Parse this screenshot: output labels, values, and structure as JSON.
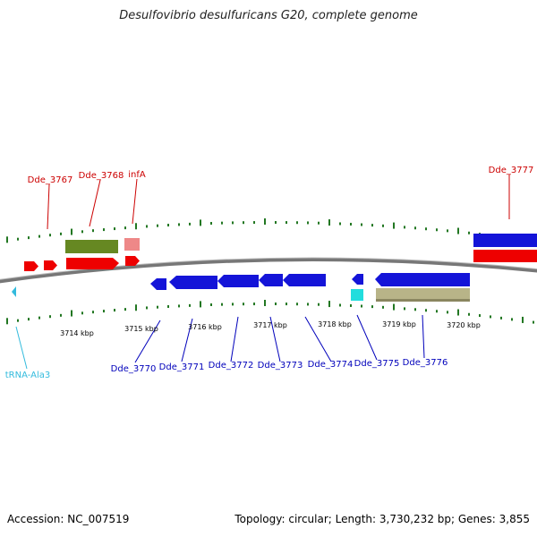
{
  "title": "Desulfovibrio desulfuricans G20, complete genome",
  "footer": {
    "accession": "Accession: NC_007519",
    "info": "Topology: circular; Length: 3,730,232 bp; Genes: 3,855"
  },
  "colors": {
    "forward_gene": "#ee0000",
    "reverse_gene": "#1414d8",
    "forward_label": "#cc0000",
    "reverse_label": "#0000bb",
    "trna": "#33bbdd",
    "tick": "#227722",
    "backbone": "#777777",
    "gc_forward": "#668822",
    "gc_reverse": "#b8b488",
    "pink_feature": "#ee8888",
    "cyan_feature": "#22dddd"
  },
  "scale_labels": [
    "3714 kbp",
    "3715 kbp",
    "3716 kbp",
    "3717 kbp",
    "3718 kbp",
    "3719 kbp",
    "3720 kbp"
  ],
  "forward_labels": [
    {
      "text": "Dde_3767"
    },
    {
      "text": "Dde_3768"
    },
    {
      "text": "infA"
    },
    {
      "text": "Dde_3777"
    }
  ],
  "reverse_labels": [
    {
      "text": "Dde_3770"
    },
    {
      "text": "Dde_3771"
    },
    {
      "text": "Dde_3772"
    },
    {
      "text": "Dde_3773"
    },
    {
      "text": "Dde_3774"
    },
    {
      "text": "Dde_3775"
    },
    {
      "text": "Dde_3776"
    }
  ],
  "trna_label": "tRNA-Ala3"
}
